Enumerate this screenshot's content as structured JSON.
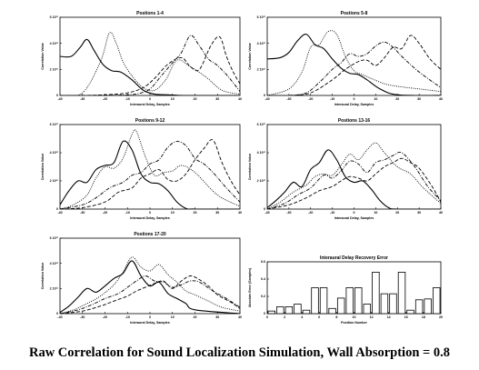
{
  "caption": "Raw Correlation for Sound Localization Simulation, Wall Absorption = 0.8",
  "chart_data": [
    {
      "type": "line",
      "title": "Postions 1-4",
      "xlabel": "Interaural Delay, Samples",
      "ylabel": "Correlation Value",
      "xlim": [
        -40,
        40
      ],
      "ytick_labels": [
        "0",
        "2 10¹¹",
        "4 10¹¹",
        "6 10¹¹"
      ],
      "ylim": [
        0,
        6
      ],
      "series": [
        {
          "style": "solid",
          "x": [
            -40,
            -35,
            -31,
            -28,
            -25,
            -21,
            -17,
            -13,
            -8,
            -3,
            2,
            8,
            15,
            25,
            40
          ],
          "y": [
            3.0,
            3.0,
            3.7,
            4.3,
            3.5,
            2.4,
            1.9,
            1.8,
            1.2,
            0.4,
            0.1,
            0.05,
            0.0,
            0.0,
            0.0
          ]
        },
        {
          "style": "dotted",
          "x": [
            -40,
            -30,
            -22,
            -18,
            -15,
            -12,
            -8,
            -3,
            2,
            7,
            12,
            18,
            25,
            32,
            40
          ],
          "y": [
            0.0,
            0.2,
            2.6,
            4.8,
            4.0,
            2.6,
            1.5,
            0.6,
            0.4,
            1.2,
            2.7,
            2.2,
            1.4,
            0.4,
            0.1
          ]
        },
        {
          "style": "dashdot",
          "x": [
            -40,
            -30,
            -20,
            -10,
            -5,
            0,
            5,
            10,
            14,
            18,
            22,
            26,
            30,
            35,
            40
          ],
          "y": [
            0.0,
            0.0,
            0.0,
            0.05,
            0.15,
            0.5,
            1.5,
            2.5,
            3.3,
            4.6,
            3.8,
            2.8,
            2.3,
            1.4,
            0.3
          ]
        },
        {
          "style": "dashed",
          "x": [
            -40,
            -30,
            -20,
            -10,
            -3,
            2,
            8,
            14,
            18,
            22,
            27,
            31,
            34,
            37,
            40
          ],
          "y": [
            0.0,
            0.0,
            0.05,
            0.2,
            0.6,
            1.3,
            2.4,
            2.9,
            2.2,
            2.0,
            3.8,
            4.5,
            3.0,
            1.8,
            0.9
          ]
        }
      ]
    },
    {
      "type": "line",
      "title": "Postions 5-8",
      "xlabel": "Interaural Delay, Samples",
      "ylabel": "Correlation Value",
      "xlim": [
        -40,
        40
      ],
      "ytick_labels": [
        "0",
        "2 10¹¹",
        "4 10¹¹",
        "6 10¹¹"
      ],
      "ylim": [
        0,
        6
      ],
      "series": [
        {
          "style": "solid",
          "x": [
            -40,
            -34,
            -30,
            -26,
            -22,
            -18,
            -14,
            -10,
            -6,
            -2,
            2,
            6,
            12,
            20,
            40
          ],
          "y": [
            2.8,
            2.9,
            3.3,
            4.2,
            4.7,
            3.9,
            3.6,
            2.8,
            2.1,
            1.7,
            1.6,
            1.2,
            0.5,
            0.05,
            0.0
          ]
        },
        {
          "style": "dotted",
          "x": [
            -40,
            -30,
            -24,
            -20,
            -16,
            -12,
            -8,
            -4,
            0,
            4,
            8,
            14,
            20,
            30,
            40
          ],
          "y": [
            0.0,
            0.5,
            1.8,
            3.7,
            3.9,
            4.9,
            4.7,
            3.0,
            1.9,
            1.6,
            1.3,
            0.9,
            0.7,
            0.5,
            0.3
          ]
        },
        {
          "style": "dashdot",
          "x": [
            -40,
            -30,
            -22,
            -16,
            -10,
            -6,
            -2,
            2,
            6,
            10,
            14,
            18,
            22,
            30,
            40
          ],
          "y": [
            0.0,
            0.0,
            0.2,
            1.0,
            2.0,
            2.5,
            3.2,
            3.0,
            3.2,
            3.8,
            4.1,
            3.7,
            3.0,
            1.8,
            0.6
          ]
        },
        {
          "style": "dashed",
          "x": [
            -40,
            -30,
            -20,
            -10,
            -4,
            2,
            6,
            10,
            14,
            18,
            22,
            26,
            30,
            35,
            40
          ],
          "y": [
            0.0,
            0.0,
            0.2,
            1.2,
            2.0,
            2.6,
            2.7,
            2.3,
            2.9,
            3.7,
            3.6,
            4.6,
            4.0,
            2.8,
            2.0
          ]
        }
      ]
    },
    {
      "type": "line",
      "title": "Postions 9-12",
      "xlabel": "Interaural Delay, Samples",
      "ylabel": "Correlation Value",
      "xlim": [
        -40,
        40
      ],
      "ytick_labels": [
        "0",
        "2 10¹¹",
        "4 10¹¹",
        "6 10¹¹"
      ],
      "ylim": [
        0,
        6
      ],
      "series": [
        {
          "style": "solid",
          "x": [
            -40,
            -36,
            -32,
            -28,
            -24,
            -20,
            -16,
            -12,
            -8,
            -4,
            0,
            4,
            8,
            12,
            16,
            20,
            40
          ],
          "y": [
            0.3,
            1.3,
            2.0,
            1.9,
            2.8,
            3.1,
            3.3,
            4.8,
            4.2,
            2.5,
            1.9,
            1.8,
            1.3,
            0.5,
            0.05,
            0.0,
            0.0
          ]
        },
        {
          "style": "dotted",
          "x": [
            -40,
            -34,
            -28,
            -24,
            -20,
            -16,
            -12,
            -8,
            -6,
            -2,
            2,
            6,
            10,
            14,
            20,
            30,
            40
          ],
          "y": [
            0.0,
            0.3,
            1.0,
            2.2,
            3.0,
            2.9,
            3.6,
            5.3,
            5.5,
            3.7,
            2.4,
            2.6,
            2.7,
            3.1,
            2.6,
            1.0,
            0.2
          ]
        },
        {
          "style": "dashdot",
          "x": [
            -40,
            -30,
            -24,
            -18,
            -12,
            -8,
            -4,
            0,
            4,
            8,
            12,
            16,
            20,
            24,
            28,
            34,
            40
          ],
          "y": [
            0.0,
            0.3,
            0.8,
            1.5,
            1.9,
            2.4,
            2.6,
            3.2,
            3.5,
            4.4,
            4.8,
            4.5,
            3.6,
            3.2,
            2.6,
            1.5,
            0.5
          ]
        },
        {
          "style": "dashed",
          "x": [
            -40,
            -30,
            -20,
            -14,
            -8,
            -4,
            0,
            4,
            8,
            12,
            16,
            20,
            24,
            28,
            32,
            36,
            40
          ],
          "y": [
            0.0,
            0.1,
            0.5,
            1.2,
            1.5,
            2.2,
            2.5,
            2.8,
            2.1,
            2.0,
            2.5,
            3.5,
            4.3,
            4.9,
            3.3,
            2.0,
            1.0
          ]
        }
      ]
    },
    {
      "type": "line",
      "title": "Postions 13-16",
      "xlabel": "Interaural Delay, Samples",
      "ylabel": "Correlation Value",
      "xlim": [
        -40,
        40
      ],
      "ytick_labels": [
        "0",
        "2 10¹¹",
        "4 10¹¹",
        "6 10¹¹"
      ],
      "ylim": [
        0,
        6
      ],
      "series": [
        {
          "style": "solid",
          "x": [
            -40,
            -36,
            -32,
            -28,
            -24,
            -20,
            -16,
            -12,
            -8,
            -4,
            0,
            4,
            8,
            12,
            16,
            20,
            40
          ],
          "y": [
            0.1,
            0.6,
            1.2,
            1.9,
            1.6,
            2.8,
            3.3,
            4.2,
            3.5,
            2.3,
            1.9,
            2.0,
            1.4,
            0.6,
            0.1,
            0.0,
            0.0
          ]
        },
        {
          "style": "dotted",
          "x": [
            -40,
            -34,
            -28,
            -22,
            -18,
            -14,
            -10,
            -6,
            -2,
            2,
            6,
            10,
            14,
            20,
            26,
            32,
            40
          ],
          "y": [
            0.0,
            0.5,
            1.2,
            1.7,
            2.3,
            2.5,
            2.4,
            3.1,
            3.9,
            3.5,
            4.2,
            4.7,
            4.0,
            3.0,
            2.5,
            1.5,
            0.4
          ]
        },
        {
          "style": "dashdot",
          "x": [
            -40,
            -32,
            -26,
            -20,
            -14,
            -10,
            -6,
            -2,
            2,
            6,
            10,
            14,
            18,
            22,
            28,
            34,
            40
          ],
          "y": [
            0.0,
            0.4,
            1.0,
            1.5,
            2.4,
            2.2,
            2.7,
            3.4,
            3.2,
            2.6,
            3.3,
            3.5,
            3.8,
            4.0,
            3.0,
            1.6,
            0.6
          ]
        },
        {
          "style": "dashed",
          "x": [
            -40,
            -30,
            -22,
            -16,
            -10,
            -6,
            -2,
            2,
            6,
            10,
            14,
            18,
            22,
            26,
            30,
            36,
            40
          ],
          "y": [
            0.0,
            0.3,
            0.8,
            1.3,
            1.6,
            2.0,
            2.3,
            2.2,
            2.0,
            2.5,
            3.0,
            3.3,
            3.6,
            3.3,
            2.9,
            1.6,
            0.5
          ]
        }
      ]
    },
    {
      "type": "line",
      "title": "Postions 17-20",
      "xlabel": "Interaural Delay, Samples",
      "ylabel": "Correlation Value",
      "xlim": [
        -40,
        40
      ],
      "ytick_labels": [
        "0",
        "2 10¹¹",
        "4 10¹¹",
        "6 10¹¹"
      ],
      "ylim": [
        0,
        6
      ],
      "series": [
        {
          "style": "solid",
          "x": [
            -40,
            -36,
            -32,
            -28,
            -24,
            -20,
            -16,
            -12,
            -8,
            -4,
            0,
            4,
            8,
            12,
            16,
            20,
            40
          ],
          "y": [
            0.1,
            0.6,
            1.3,
            2.0,
            1.7,
            2.2,
            2.8,
            3.2,
            4.2,
            3.0,
            2.2,
            2.5,
            1.6,
            1.2,
            0.8,
            0.3,
            0.0
          ]
        },
        {
          "style": "dotted",
          "x": [
            -40,
            -34,
            -28,
            -22,
            -16,
            -12,
            -8,
            -4,
            0,
            4,
            8,
            12,
            16,
            20,
            26,
            32,
            40
          ],
          "y": [
            0.0,
            0.3,
            0.8,
            1.4,
            2.3,
            3.3,
            4.5,
            3.7,
            3.4,
            3.9,
            3.1,
            2.5,
            1.8,
            1.5,
            1.0,
            0.5,
            0.2
          ]
        },
        {
          "style": "dashdot",
          "x": [
            -40,
            -32,
            -26,
            -20,
            -14,
            -10,
            -6,
            -2,
            2,
            6,
            10,
            14,
            18,
            22,
            28,
            34,
            40
          ],
          "y": [
            0.0,
            0.3,
            0.7,
            1.2,
            1.6,
            2.1,
            2.6,
            3.0,
            2.6,
            2.5,
            2.1,
            2.3,
            2.6,
            2.5,
            1.8,
            1.2,
            0.5
          ]
        },
        {
          "style": "dashed",
          "x": [
            -40,
            -30,
            -22,
            -16,
            -10,
            -6,
            -2,
            2,
            6,
            10,
            14,
            18,
            22,
            26,
            30,
            36,
            40
          ],
          "y": [
            0.0,
            0.2,
            0.6,
            1.0,
            1.4,
            1.8,
            2.1,
            2.4,
            2.6,
            2.0,
            2.6,
            3.0,
            2.7,
            2.2,
            1.5,
            0.9,
            0.4
          ]
        }
      ]
    },
    {
      "type": "bar",
      "title": "Interaural Delay Recovery Error",
      "xlabel": "Position Number",
      "ylabel": "Absolute Error (Samples)",
      "xlim": [
        0,
        20
      ],
      "ylim": [
        0,
        6
      ],
      "ytick_labels": [
        "0",
        "0.2",
        "0.4",
        "0.6"
      ],
      "x": [
        1,
        2,
        3,
        4,
        5,
        6,
        7,
        8,
        9,
        10,
        11,
        12,
        13,
        14,
        15,
        16,
        17,
        18,
        19,
        20
      ],
      "values": [
        0.3,
        0.8,
        0.8,
        1.1,
        0.4,
        3.0,
        3.0,
        0.6,
        1.8,
        3.0,
        3.0,
        1.1,
        4.8,
        2.3,
        2.3,
        4.8,
        0.4,
        1.6,
        1.7,
        3.0
      ]
    }
  ]
}
